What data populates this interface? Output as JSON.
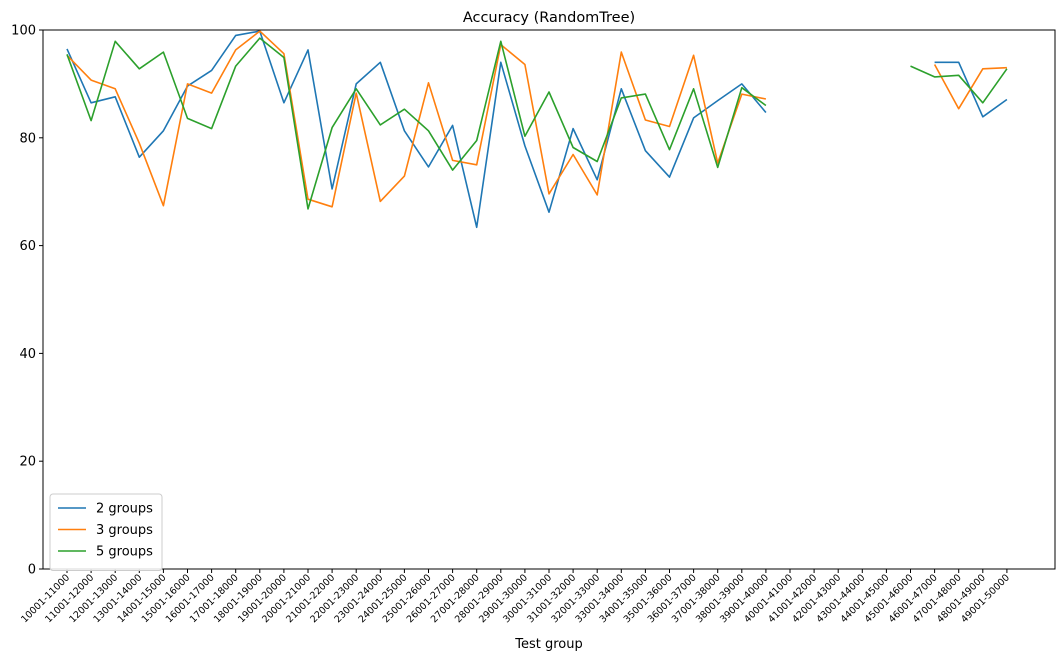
{
  "chart_data": {
    "type": "line",
    "title": "Accuracy (RandomTree)",
    "xlabel": "Test group",
    "ylabel": "",
    "ylim": [
      0,
      100
    ],
    "yticks": [
      0,
      20,
      40,
      60,
      80,
      100
    ],
    "grid": false,
    "legend_position": "lower-left",
    "categories": [
      "10001-11000",
      "11001-12000",
      "12001-13000",
      "13001-14000",
      "14001-15000",
      "15001-16000",
      "16001-17000",
      "17001-18000",
      "18001-19000",
      "19001-20000",
      "20001-21000",
      "21001-22000",
      "22001-23000",
      "23001-24000",
      "24001-25000",
      "25001-26000",
      "26001-27000",
      "27001-28000",
      "28001-29000",
      "29001-30000",
      "30001-31000",
      "31001-32000",
      "32001-33000",
      "33001-34000",
      "34001-35000",
      "35001-36000",
      "36001-37000",
      "37001-38000",
      "38001-39000",
      "39001-40000",
      "40001-41000",
      "41001-42000",
      "42001-43000",
      "43001-44000",
      "44001-45000",
      "45001-46000",
      "46001-47000",
      "47001-48000",
      "48001-49000",
      "49001-50000"
    ],
    "series": [
      {
        "name": "2 groups",
        "color": "#1f77b4",
        "values": [
          96.5,
          86.5,
          87.6,
          76.4,
          81.3,
          89.6,
          92.5,
          99.0,
          99.8,
          86.5,
          96.3,
          70.5,
          90.0,
          94.0,
          81.3,
          74.6,
          82.3,
          63.4,
          94.0,
          78.5,
          66.2,
          81.7,
          72.2,
          89.1,
          77.6,
          72.7,
          83.7,
          86.9,
          90.0,
          84.7,
          null,
          null,
          null,
          null,
          null,
          null,
          94.0,
          94.0,
          83.9,
          87.1
        ]
      },
      {
        "name": "3 groups",
        "color": "#ff7f0e",
        "values": [
          95.3,
          90.7,
          89.1,
          79.0,
          67.4,
          90.0,
          88.3,
          96.3,
          99.8,
          95.6,
          68.6,
          67.2,
          88.3,
          68.2,
          72.9,
          90.2,
          75.8,
          75.0,
          97.3,
          93.6,
          69.6,
          76.9,
          69.4,
          95.9,
          83.3,
          82.1,
          95.3,
          75.3,
          88.1,
          87.2,
          null,
          null,
          null,
          null,
          null,
          null,
          93.6,
          85.4,
          92.8,
          93.0
        ]
      },
      {
        "name": "5 groups",
        "color": "#2ca02c",
        "values": [
          95.5,
          83.2,
          97.9,
          92.8,
          95.9,
          83.6,
          81.7,
          93.3,
          98.5,
          94.9,
          66.8,
          81.9,
          89.1,
          82.4,
          85.3,
          81.3,
          74.0,
          79.5,
          97.9,
          80.3,
          88.5,
          78.2,
          75.6,
          87.4,
          88.1,
          77.8,
          89.1,
          74.5,
          89.3,
          86.0,
          null,
          null,
          null,
          null,
          null,
          93.3,
          91.3,
          91.6,
          86.5,
          92.8
        ]
      }
    ]
  }
}
